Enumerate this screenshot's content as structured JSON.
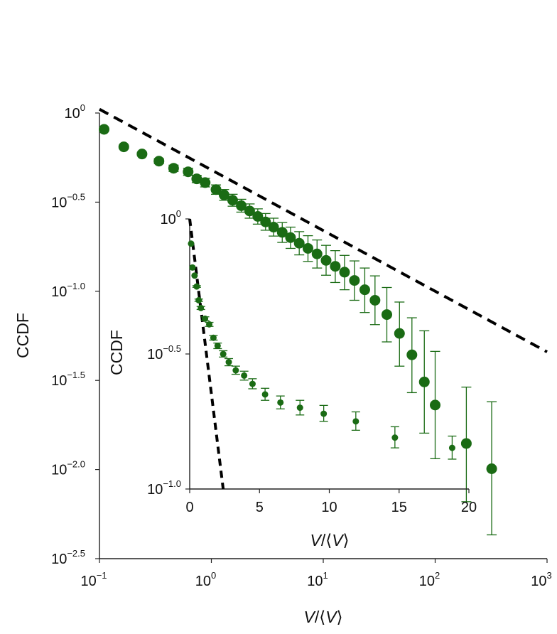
{
  "chart_data": [
    {
      "type": "scatter",
      "x_scale": "log",
      "y_scale": "log",
      "xlim": [
        0.1,
        1000
      ],
      "ylim": [
        0.003162,
        1
      ],
      "x_ticks": [
        {
          "value": 0.1,
          "base": "10",
          "exp": "−1"
        },
        {
          "value": 1,
          "base": "10",
          "exp": "0"
        },
        {
          "value": 10,
          "base": "10",
          "exp": "1"
        },
        {
          "value": 100,
          "base": "10",
          "exp": "2"
        },
        {
          "value": 1000,
          "base": "10",
          "exp": "3"
        }
      ],
      "y_ticks": [
        {
          "value": 1,
          "base": "10",
          "exp": "0"
        },
        {
          "value": 0.3162,
          "base": "10",
          "exp": "−0.5"
        },
        {
          "value": 0.1,
          "base": "10",
          "exp": "−1.0"
        },
        {
          "value": 0.03162,
          "base": "10",
          "exp": "−1.5"
        },
        {
          "value": 0.01,
          "base": "10",
          "exp": "−2.0"
        },
        {
          "value": 0.003162,
          "base": "10",
          "exp": "−2.5"
        }
      ],
      "xlabel": {
        "main": "V",
        "pre": "/⟨",
        "inner": "V",
        "post": "⟩"
      },
      "ylabel": "CCDF",
      "color": "#1a6b14",
      "fit_color": "#000000",
      "fit_line": {
        "x": [
          0.1,
          1000
        ],
        "y": [
          1.05,
          0.0457
        ]
      },
      "points": [
        {
          "x": 0.11,
          "y": 0.81,
          "lo": 0.81,
          "hi": 0.81
        },
        {
          "x": 0.165,
          "y": 0.646,
          "lo": 0.63,
          "hi": 0.66
        },
        {
          "x": 0.24,
          "y": 0.589,
          "lo": 0.575,
          "hi": 0.603
        },
        {
          "x": 0.34,
          "y": 0.537,
          "lo": 0.52,
          "hi": 0.555
        },
        {
          "x": 0.46,
          "y": 0.49,
          "lo": 0.47,
          "hi": 0.51
        },
        {
          "x": 0.62,
          "y": 0.468,
          "lo": 0.447,
          "hi": 0.49
        },
        {
          "x": 0.74,
          "y": 0.427,
          "lo": 0.407,
          "hi": 0.447
        },
        {
          "x": 0.88,
          "y": 0.407,
          "lo": 0.385,
          "hi": 0.43
        },
        {
          "x": 1.1,
          "y": 0.372,
          "lo": 0.35,
          "hi": 0.395
        },
        {
          "x": 1.3,
          "y": 0.347,
          "lo": 0.324,
          "hi": 0.372
        },
        {
          "x": 1.55,
          "y": 0.324,
          "lo": 0.3,
          "hi": 0.35
        },
        {
          "x": 1.85,
          "y": 0.302,
          "lo": 0.278,
          "hi": 0.328
        },
        {
          "x": 2.2,
          "y": 0.282,
          "lo": 0.257,
          "hi": 0.309
        },
        {
          "x": 2.6,
          "y": 0.263,
          "lo": 0.238,
          "hi": 0.29
        },
        {
          "x": 3.05,
          "y": 0.245,
          "lo": 0.22,
          "hi": 0.273
        },
        {
          "x": 3.6,
          "y": 0.229,
          "lo": 0.204,
          "hi": 0.257
        },
        {
          "x": 4.3,
          "y": 0.214,
          "lo": 0.188,
          "hi": 0.243
        },
        {
          "x": 5.1,
          "y": 0.2,
          "lo": 0.174,
          "hi": 0.229
        },
        {
          "x": 6.1,
          "y": 0.186,
          "lo": 0.16,
          "hi": 0.216
        },
        {
          "x": 7.3,
          "y": 0.174,
          "lo": 0.147,
          "hi": 0.205
        },
        {
          "x": 8.8,
          "y": 0.162,
          "lo": 0.135,
          "hi": 0.194
        },
        {
          "x": 10.6,
          "y": 0.149,
          "lo": 0.123,
          "hi": 0.181
        },
        {
          "x": 12.8,
          "y": 0.138,
          "lo": 0.112,
          "hi": 0.169
        },
        {
          "x": 15.5,
          "y": 0.128,
          "lo": 0.102,
          "hi": 0.159
        },
        {
          "x": 19,
          "y": 0.115,
          "lo": 0.089,
          "hi": 0.148
        },
        {
          "x": 23.5,
          "y": 0.102,
          "lo": 0.076,
          "hi": 0.135
        },
        {
          "x": 29,
          "y": 0.089,
          "lo": 0.065,
          "hi": 0.122
        },
        {
          "x": 37,
          "y": 0.074,
          "lo": 0.052,
          "hi": 0.105
        },
        {
          "x": 48,
          "y": 0.058,
          "lo": 0.038,
          "hi": 0.087
        },
        {
          "x": 62,
          "y": 0.044,
          "lo": 0.027,
          "hi": 0.071
        },
        {
          "x": 80,
          "y": 0.031,
          "lo": 0.016,
          "hi": 0.06
        },
        {
          "x": 100,
          "y": 0.023,
          "lo": 0.0115,
          "hi": 0.046
        },
        {
          "x": 190,
          "y": 0.014,
          "lo": 0.0066,
          "hi": 0.029
        },
        {
          "x": 320,
          "y": 0.0101,
          "lo": 0.0043,
          "hi": 0.024
        }
      ]
    },
    {
      "type": "scatter",
      "x_scale": "linear",
      "y_scale": "log",
      "xlim": [
        0,
        20
      ],
      "ylim": [
        0.1,
        1
      ],
      "x_ticks": [
        {
          "value": 0,
          "label": "0"
        },
        {
          "value": 5,
          "label": "5"
        },
        {
          "value": 10,
          "label": "10"
        },
        {
          "value": 15,
          "label": "15"
        },
        {
          "value": 20,
          "label": "20"
        }
      ],
      "y_ticks": [
        {
          "value": 1,
          "base": "10",
          "exp": "0"
        },
        {
          "value": 0.3162,
          "base": "10",
          "exp": "−0.5"
        },
        {
          "value": 0.1,
          "base": "10",
          "exp": "−1.0"
        }
      ],
      "xlabel": {
        "main": "V",
        "pre": "/⟨",
        "inner": "V",
        "post": "⟩"
      },
      "ylabel": "CCDF",
      "color": "#1a6b14",
      "fit_color": "#000000",
      "fit_line": {
        "x": [
          0,
          2.4
        ],
        "y": [
          1,
          0.1
        ]
      },
      "points": [
        {
          "x": 0.1,
          "y": 0.81,
          "lo": 0.81,
          "hi": 0.81
        },
        {
          "x": 0.2,
          "y": 0.661,
          "lo": 0.661,
          "hi": 0.661
        },
        {
          "x": 0.35,
          "y": 0.617,
          "lo": 0.617,
          "hi": 0.617
        },
        {
          "x": 0.5,
          "y": 0.562,
          "lo": 0.558,
          "hi": 0.566
        },
        {
          "x": 0.65,
          "y": 0.5,
          "lo": 0.495,
          "hi": 0.505
        },
        {
          "x": 0.8,
          "y": 0.468,
          "lo": 0.462,
          "hi": 0.474
        },
        {
          "x": 1.1,
          "y": 0.427,
          "lo": 0.421,
          "hi": 0.434
        },
        {
          "x": 1.4,
          "y": 0.407,
          "lo": 0.4,
          "hi": 0.414
        },
        {
          "x": 1.7,
          "y": 0.363,
          "lo": 0.356,
          "hi": 0.37
        },
        {
          "x": 2.0,
          "y": 0.339,
          "lo": 0.331,
          "hi": 0.347
        },
        {
          "x": 2.4,
          "y": 0.316,
          "lo": 0.308,
          "hi": 0.325
        },
        {
          "x": 2.8,
          "y": 0.295,
          "lo": 0.286,
          "hi": 0.304
        },
        {
          "x": 3.3,
          "y": 0.275,
          "lo": 0.266,
          "hi": 0.285
        },
        {
          "x": 3.9,
          "y": 0.263,
          "lo": 0.253,
          "hi": 0.273
        },
        {
          "x": 4.5,
          "y": 0.245,
          "lo": 0.235,
          "hi": 0.256
        },
        {
          "x": 5.4,
          "y": 0.224,
          "lo": 0.213,
          "hi": 0.236
        },
        {
          "x": 6.5,
          "y": 0.209,
          "lo": 0.198,
          "hi": 0.221
        },
        {
          "x": 7.9,
          "y": 0.2,
          "lo": 0.188,
          "hi": 0.213
        },
        {
          "x": 9.6,
          "y": 0.19,
          "lo": 0.178,
          "hi": 0.204
        },
        {
          "x": 11.9,
          "y": 0.178,
          "lo": 0.165,
          "hi": 0.193
        },
        {
          "x": 14.7,
          "y": 0.155,
          "lo": 0.142,
          "hi": 0.17
        },
        {
          "x": 18.8,
          "y": 0.142,
          "lo": 0.129,
          "hi": 0.157
        }
      ]
    }
  ]
}
